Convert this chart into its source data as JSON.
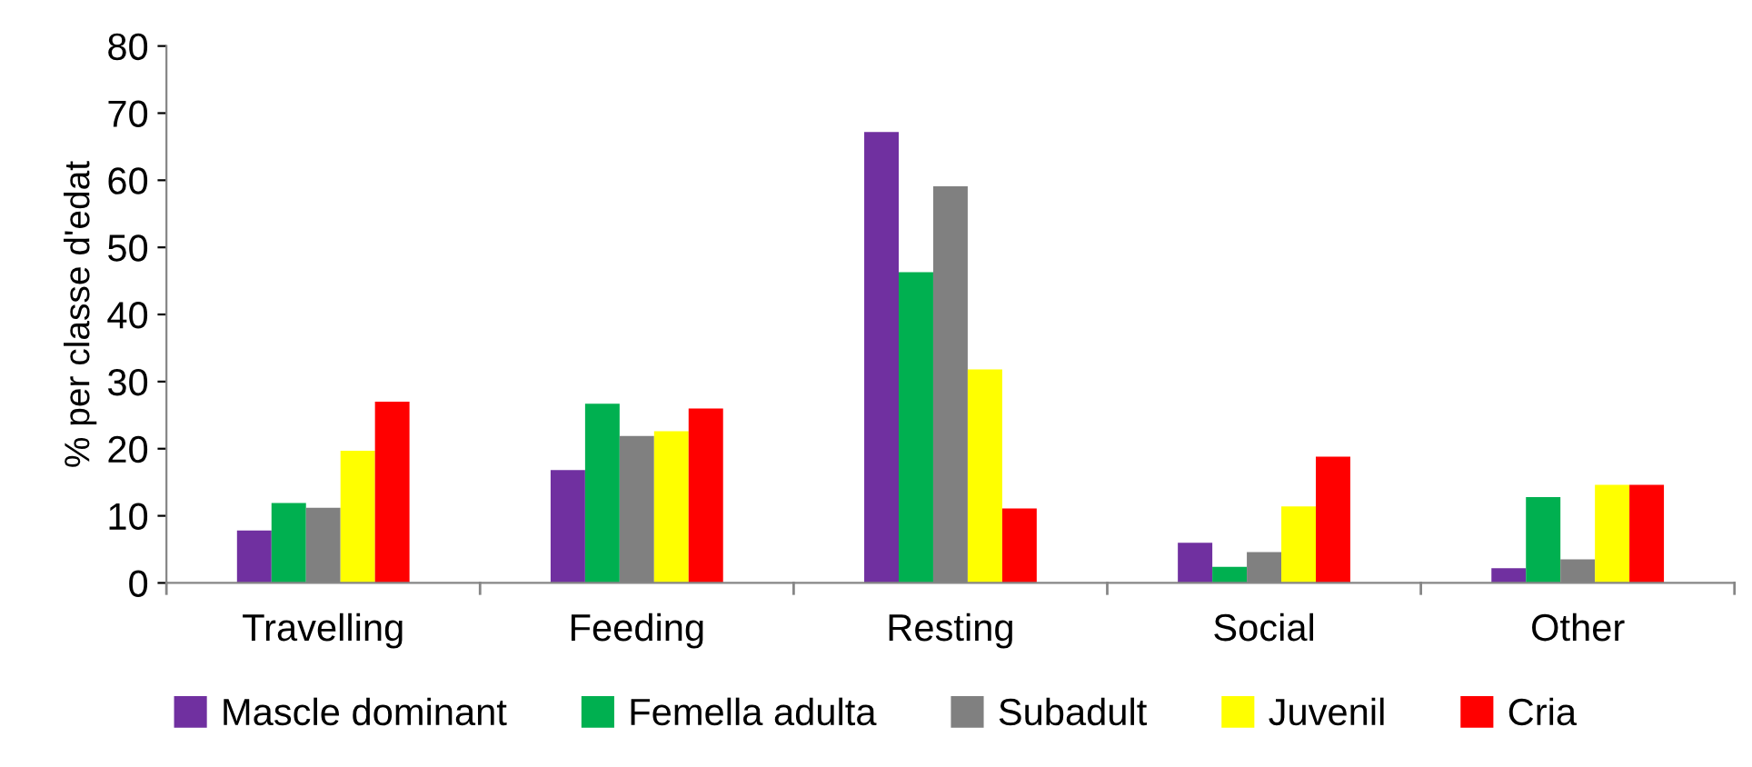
{
  "chart_data": {
    "type": "bar",
    "ylabel": "% per classe d'edat",
    "categories": [
      "Travelling",
      "Feeding",
      "Resting",
      "Social",
      "Other"
    ],
    "series": [
      {
        "name": "Mascle dominant",
        "color": "#7030a0",
        "values": [
          7.8,
          16.8,
          67.2,
          6.0,
          2.2
        ]
      },
      {
        "name": "Femella adulta",
        "color": "#00b050",
        "values": [
          11.9,
          26.7,
          46.3,
          2.4,
          12.8
        ]
      },
      {
        "name": "Subadult",
        "color": "#808080",
        "values": [
          11.2,
          21.9,
          59.1,
          4.6,
          3.5
        ]
      },
      {
        "name": "Juvenil",
        "color": "#ffff00",
        "values": [
          19.7,
          22.6,
          31.8,
          11.4,
          14.6
        ]
      },
      {
        "name": "Cria",
        "color": "#ff0000",
        "values": [
          27.0,
          26.0,
          11.1,
          18.8,
          14.6
        ]
      }
    ],
    "ylim": [
      0,
      80
    ],
    "yticks": [
      0,
      10,
      20,
      30,
      40,
      50,
      60,
      70,
      80
    ],
    "grid": false,
    "legend": "bottom"
  }
}
